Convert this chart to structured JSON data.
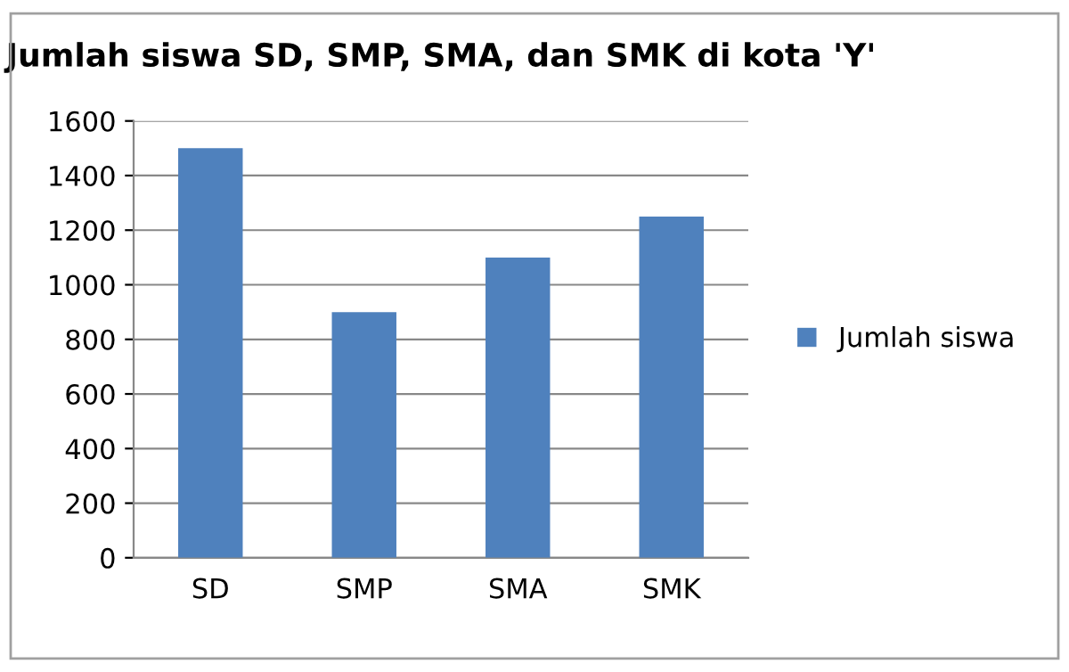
{
  "chart_data": {
    "type": "bar",
    "title": "Jumlah siswa SD, SMP, SMA, dan SMK di kota 'Y'",
    "categories": [
      "SD",
      "SMP",
      "SMA",
      "SMK"
    ],
    "series": [
      {
        "name": "Jumlah siswa",
        "color": "#4f81bd",
        "values": [
          1500,
          900,
          1100,
          1250
        ]
      }
    ],
    "ylim": [
      0,
      1600
    ],
    "yticks": [
      0,
      200,
      400,
      600,
      800,
      1000,
      1200,
      1400,
      1600
    ],
    "grid": "y",
    "legend": "right"
  }
}
